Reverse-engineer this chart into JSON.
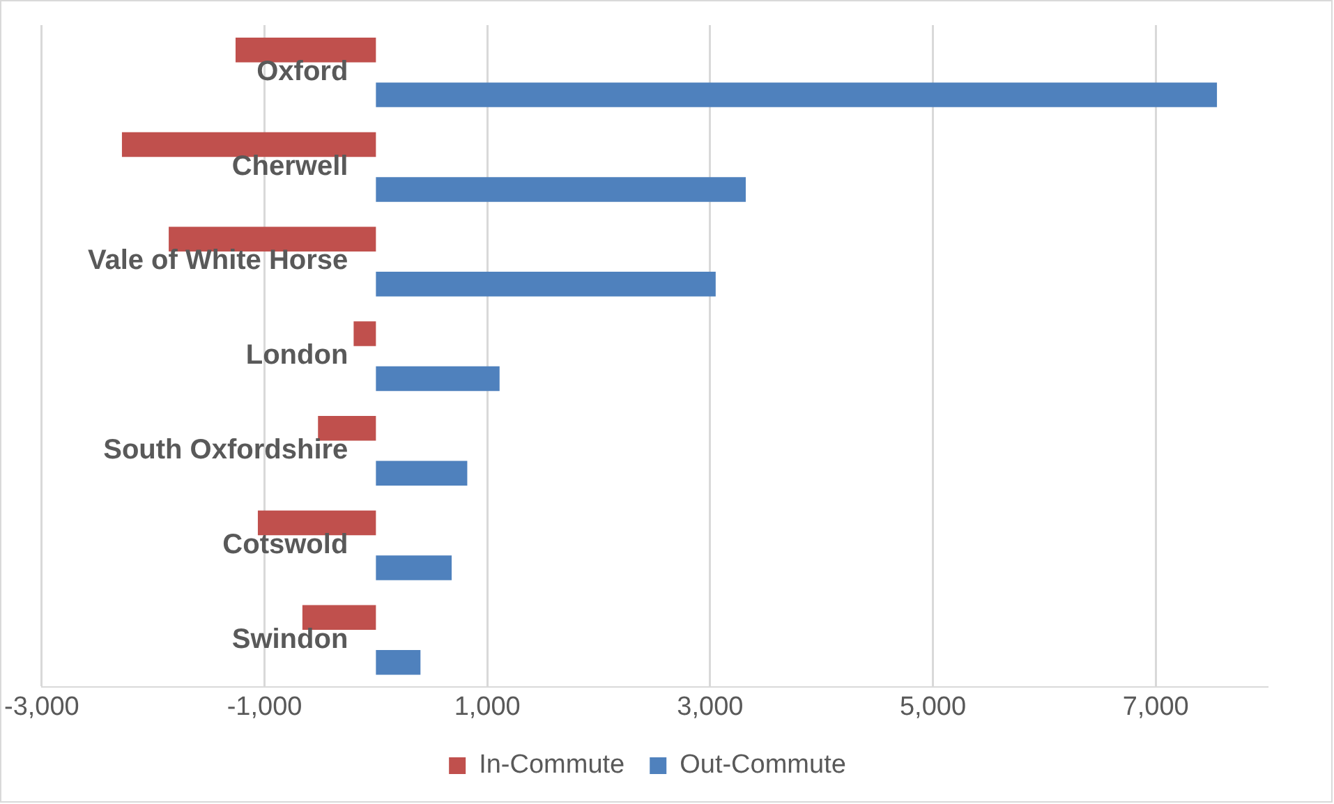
{
  "chart_data": {
    "type": "bar",
    "orientation": "horizontal",
    "categories": [
      "Oxford",
      "Cherwell",
      "Vale of White Horse",
      "London",
      "South Oxfordshire",
      "Cotswold",
      "Swindon"
    ],
    "series": [
      {
        "name": "In-Commute",
        "color": "#c0504d",
        "values": [
          -1260,
          -2280,
          -1860,
          -200,
          -520,
          -1060,
          -660
        ]
      },
      {
        "name": "Out-Commute",
        "color": "#4f81bd",
        "values": [
          7550,
          3320,
          3050,
          1110,
          820,
          680,
          400
        ]
      }
    ],
    "xlim": [
      -3000,
      8000
    ],
    "xticks": [
      {
        "value": -3000,
        "label": "-3,000"
      },
      {
        "value": -1000,
        "label": "-1,000"
      },
      {
        "value": 1000,
        "label": "1,000"
      },
      {
        "value": 3000,
        "label": "3,000"
      },
      {
        "value": 5000,
        "label": "5,000"
      },
      {
        "value": 7000,
        "label": "7,000"
      }
    ],
    "grid": "x",
    "legend": "bottom"
  }
}
